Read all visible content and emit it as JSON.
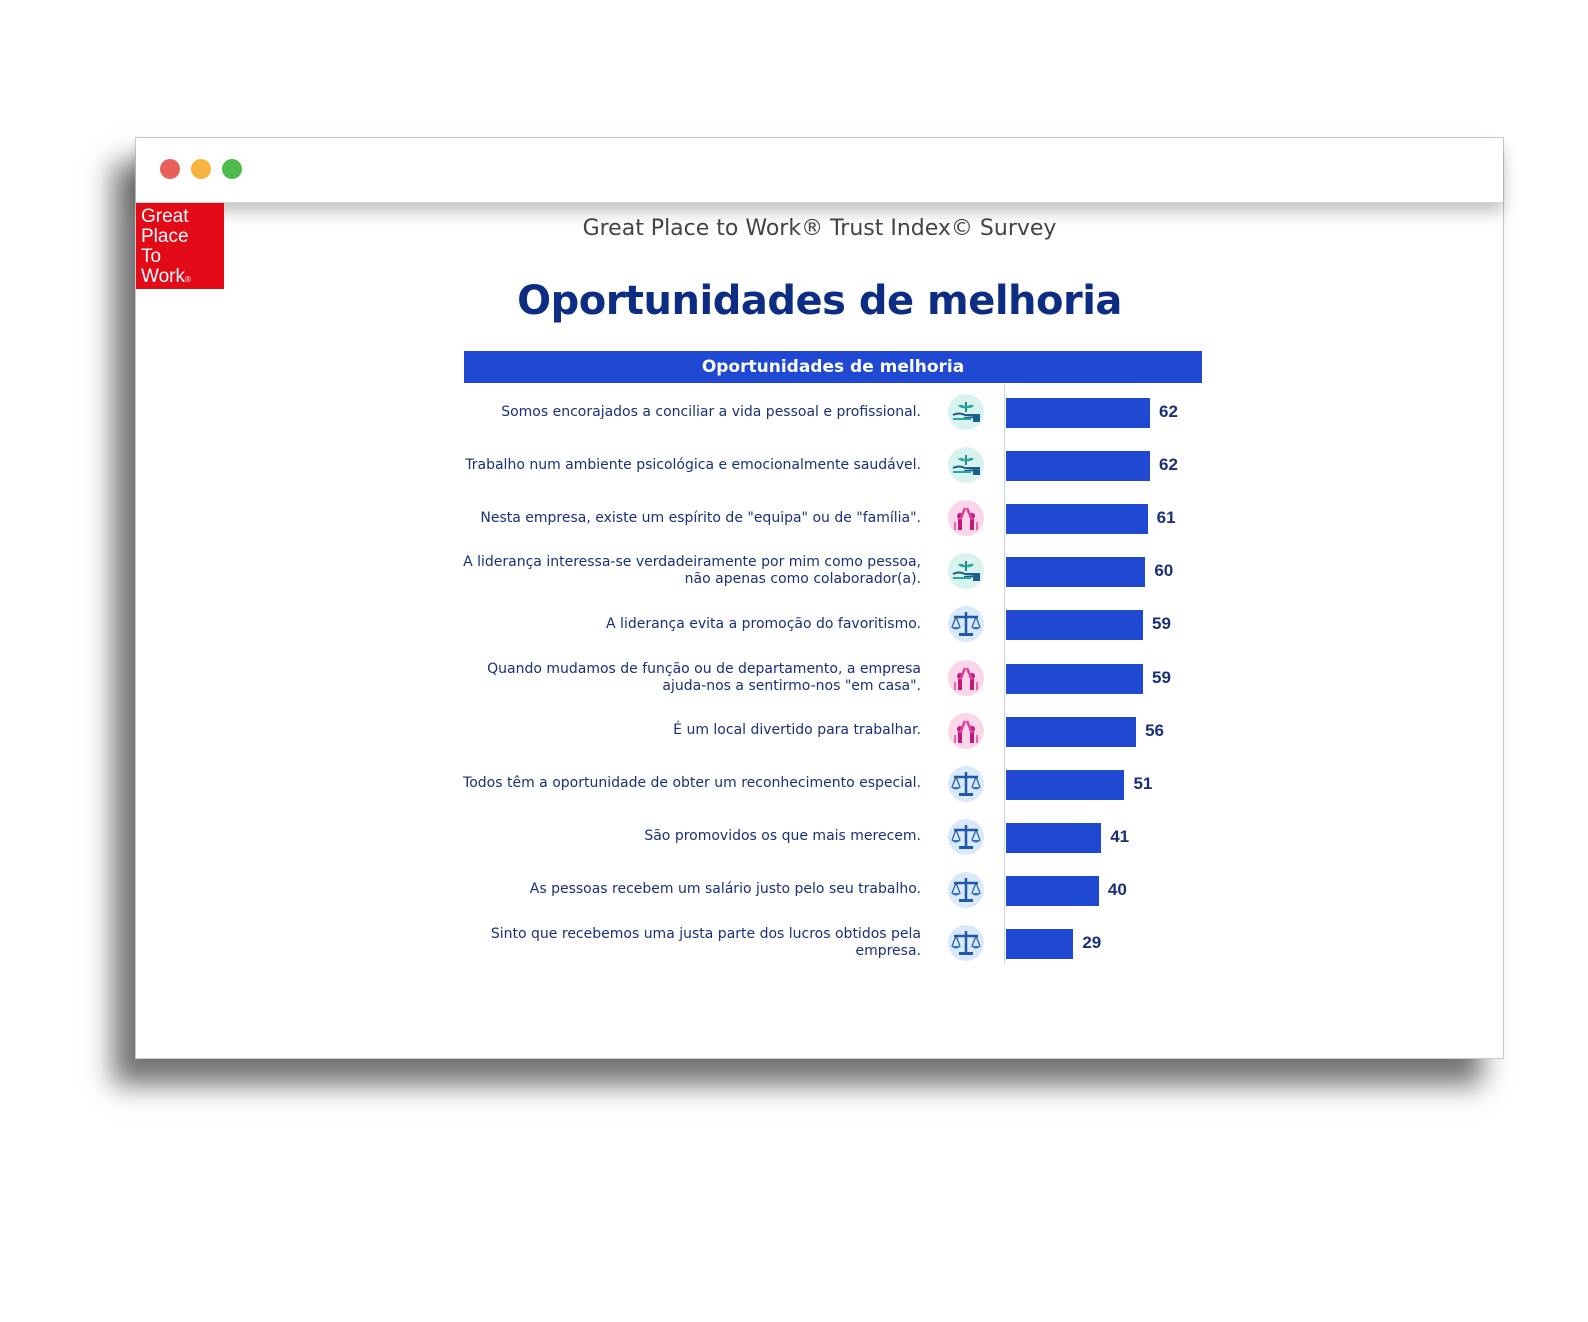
{
  "window": {
    "buttons": {
      "close_color": "#e8605a",
      "minimize_color": "#f4b43f",
      "maximize_color": "#4dbb4c"
    }
  },
  "logo": {
    "lines": [
      "Great",
      "Place",
      "To",
      "Work"
    ],
    "registered": "®",
    "color": "#e30a17"
  },
  "survey_title": "Great Place to Work® Trust Index© Survey",
  "page_title": "Oportunidades de melhoria",
  "colors": {
    "bar": "#1f48d3",
    "title": "#0c2d83",
    "text": "#1a2f7a"
  },
  "chart_data": {
    "type": "bar",
    "orientation": "horizontal",
    "title": "Oportunidades de melhoria",
    "xlim": [
      0,
      100
    ],
    "grid": false,
    "categories": [
      "Somos encorajados a conciliar a vida pessoal e profissional.",
      "Trabalho num ambiente psicológica e emocionalmente saudável.",
      "Nesta empresa, existe um espírito de \"equipa\" ou de \"família\".",
      "A liderança interessa-se verdadeiramente por mim como pessoa, não apenas como colaborador(a).",
      "A liderança evita a promoção do favoritismo.",
      "Quando mudamos de função ou de departamento, a empresa ajuda-nos a sentirmo-nos \"em casa\".",
      "É um local divertido para trabalhar.",
      "Todos têm a oportunidade de obter um reconhecimento especial.",
      "São promovidos os que mais merecem.",
      "As pessoas recebem um salário justo pelo seu trabalho.",
      "Sinto que recebemos uma justa parte dos lucros obtidos pela empresa."
    ],
    "values": [
      62,
      62,
      61,
      60,
      59,
      59,
      56,
      51,
      41,
      40,
      29
    ],
    "icons": [
      "hand-plant-icon",
      "hand-plant-icon",
      "people-celebrate-icon",
      "hand-plant-icon",
      "scales-icon",
      "people-celebrate-icon",
      "people-celebrate-icon",
      "scales-icon",
      "scales-icon",
      "scales-icon",
      "scales-icon"
    ]
  }
}
